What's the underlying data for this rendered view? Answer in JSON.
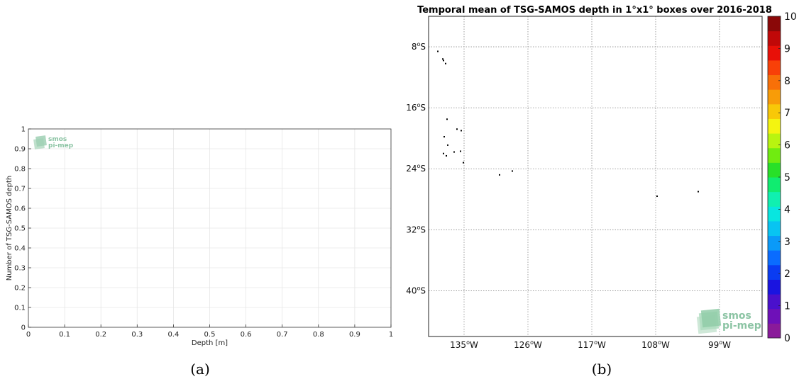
{
  "captions": {
    "a": "(a)",
    "b": "(b)"
  },
  "logo": {
    "line1": "smos",
    "line2": "pi-mep"
  },
  "chart_data": [
    {
      "type": "line",
      "title": "",
      "xlabel": "Depth [m]",
      "ylabel": "Number of TSG-SAMOS depth",
      "xlim": [
        0,
        1
      ],
      "ylim": [
        0,
        1
      ],
      "xticks": [
        "0",
        "0.1",
        "0.2",
        "0.3",
        "0.4",
        "0.5",
        "0.6",
        "0.7",
        "0.8",
        "0.9",
        "1"
      ],
      "yticks": [
        "0",
        "0.1",
        "0.2",
        "0.3",
        "0.4",
        "0.5",
        "0.6",
        "0.7",
        "0.8",
        "0.9",
        "1"
      ],
      "grid": true,
      "series": []
    },
    {
      "type": "heatmap",
      "title": "Temporal mean of TSG-SAMOS depth in 1°x1° boxes over 2016-2018",
      "xticks": [
        {
          "value": -135,
          "label": "135°W"
        },
        {
          "value": -126,
          "label": "126°W"
        },
        {
          "value": -117,
          "label": "117°W"
        },
        {
          "value": -108,
          "label": "108°W"
        },
        {
          "value": -99,
          "label": "99°W"
        }
      ],
      "yticks": [
        {
          "value": -8,
          "label": "8°S"
        },
        {
          "value": -16,
          "label": "16°S"
        },
        {
          "value": -24,
          "label": "24°S"
        },
        {
          "value": -32,
          "label": "32°S"
        },
        {
          "value": -40,
          "label": "40°S"
        }
      ],
      "xlim": [
        -140,
        -93
      ],
      "ylim": [
        -46,
        -4
      ],
      "grid": true,
      "colorbar": {
        "min": 0,
        "max": 10,
        "ticks": [
          "0",
          "1",
          "2",
          "3",
          "4",
          "5",
          "6",
          "7",
          "8",
          "9",
          "10"
        ],
        "colors": [
          "#8a1a9a",
          "#6e10b8",
          "#4a10cc",
          "#1a14e0",
          "#0a3cf2",
          "#0a6cff",
          "#0a9af8",
          "#08c4f2",
          "#08e6e0",
          "#10f0b0",
          "#10ec70",
          "#28e028",
          "#70ec10",
          "#b8f410",
          "#f4f410",
          "#f8c808",
          "#f89c08",
          "#f87008",
          "#f84008",
          "#e81008",
          "#c00808",
          "#8a0808"
        ]
      },
      "points": [
        {
          "lon": -138.7,
          "lat": -8.6,
          "value": 10
        },
        {
          "lon": -138.0,
          "lat": -9.6,
          "value": 10
        },
        {
          "lon": -137.9,
          "lat": -9.8,
          "value": 10
        },
        {
          "lon": -137.6,
          "lat": -10.2,
          "value": 10
        },
        {
          "lon": -137.4,
          "lat": -17.5,
          "value": 10
        },
        {
          "lon": -136.0,
          "lat": -18.8,
          "value": 10
        },
        {
          "lon": -135.4,
          "lat": -19.0,
          "value": 10
        },
        {
          "lon": -137.8,
          "lat": -19.8,
          "value": 10
        },
        {
          "lon": -137.3,
          "lat": -20.9,
          "value": 10
        },
        {
          "lon": -137.9,
          "lat": -22.0,
          "value": 10
        },
        {
          "lon": -137.5,
          "lat": -22.3,
          "value": 10
        },
        {
          "lon": -136.4,
          "lat": -21.8,
          "value": 10
        },
        {
          "lon": -135.5,
          "lat": -21.7,
          "value": 10
        },
        {
          "lon": -135.1,
          "lat": -23.2,
          "value": 10
        },
        {
          "lon": -130.0,
          "lat": -24.8,
          "value": 10
        },
        {
          "lon": -128.2,
          "lat": -24.3,
          "value": 10
        },
        {
          "lon": -107.8,
          "lat": -27.6,
          "value": 10
        },
        {
          "lon": -102.0,
          "lat": -27.0,
          "value": 10
        }
      ]
    }
  ]
}
